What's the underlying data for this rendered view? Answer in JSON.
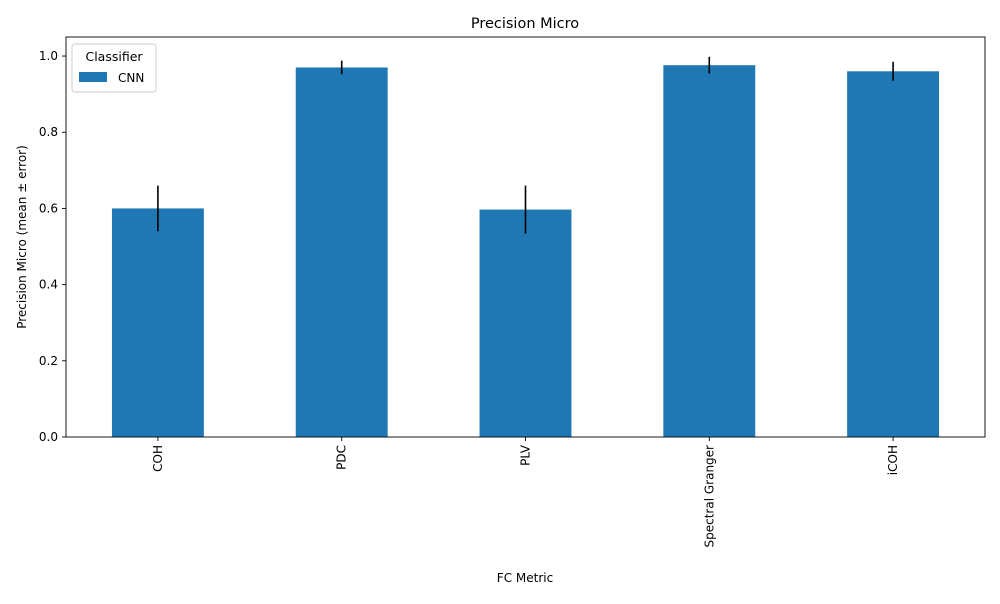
{
  "chart_data": {
    "type": "bar",
    "title": "Precision Micro",
    "xlabel": "FC Metric",
    "ylabel": "Precision Micro (mean ± error)",
    "categories": [
      "COH",
      "PDC",
      "PLV",
      "Spectral Granger",
      "iCOH"
    ],
    "series": [
      {
        "name": "CNN",
        "values": [
          0.6,
          0.97,
          0.597,
          0.976,
          0.96
        ],
        "errors": [
          0.06,
          0.018,
          0.063,
          0.022,
          0.025
        ],
        "color": "#1f77b4"
      }
    ],
    "ylim": [
      0,
      1.05
    ],
    "yticks": [
      0.0,
      0.2,
      0.4,
      0.6,
      0.8,
      1.0
    ],
    "ytick_labels": [
      "0.0",
      "0.2",
      "0.4",
      "0.6",
      "0.8",
      "1.0"
    ],
    "grid": false,
    "legend": {
      "title": "Classifier",
      "placement": "top-left"
    }
  }
}
